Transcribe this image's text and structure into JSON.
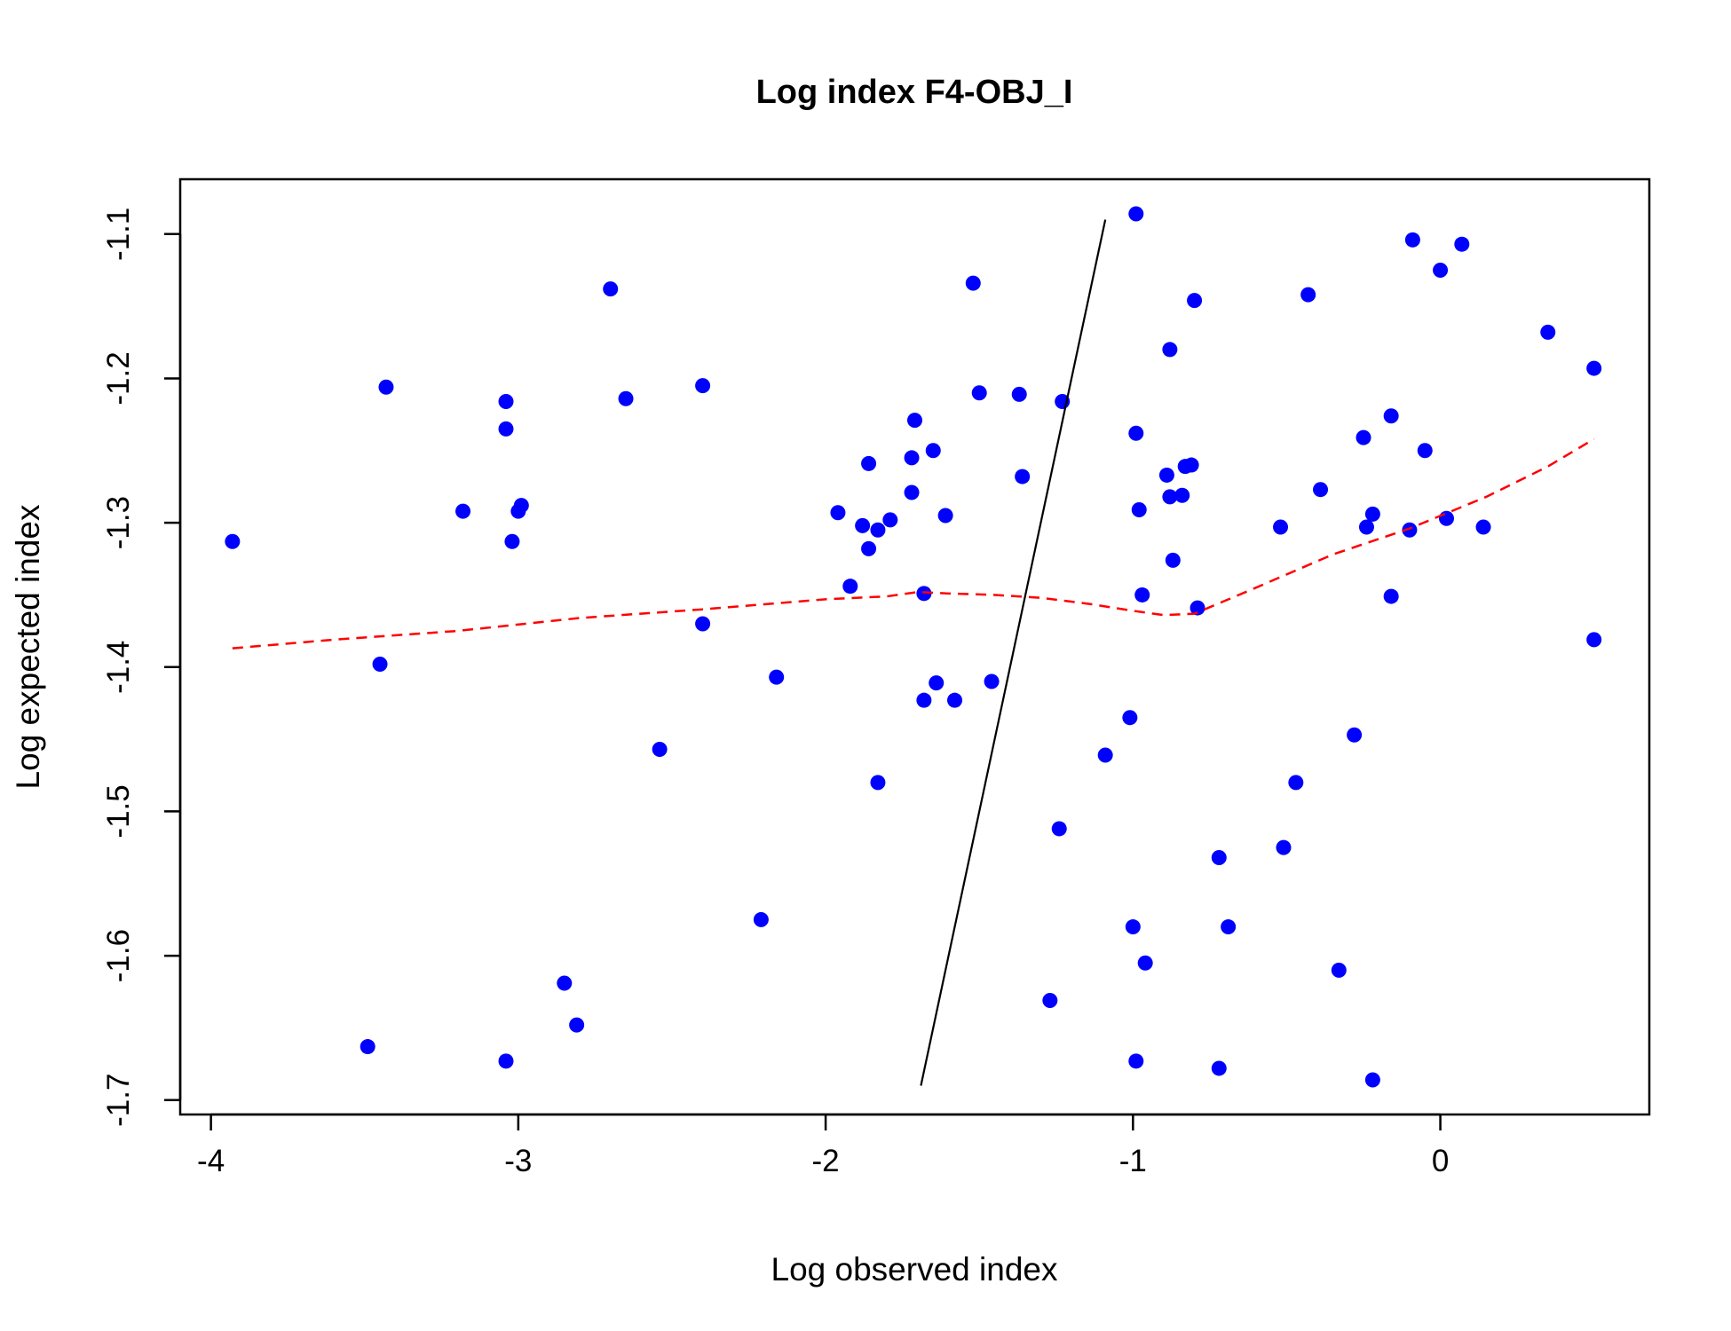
{
  "chart_data": {
    "type": "scatter",
    "title": "Log index F4-OBJ_I",
    "xlabel": "Log observed index",
    "ylabel": "Log expected index",
    "xlim": [
      -4.1,
      0.68
    ],
    "ylim": [
      -1.71,
      -1.062
    ],
    "x_ticks": [
      -4,
      -3,
      -2,
      -1,
      0
    ],
    "y_ticks": [
      -1.7,
      -1.6,
      -1.5,
      -1.4,
      -1.3,
      -1.2,
      -1.1
    ],
    "grid": false,
    "legend": "none",
    "colors": {
      "points": "#0000ff",
      "reference_line": "#000000",
      "smoother": "#ff0000",
      "frame": "#000000"
    },
    "series": [
      {
        "kind": "points",
        "x": [
          -3.93,
          -3.45,
          -3.43,
          -3.49,
          -3.18,
          -3.04,
          -3.04,
          -3.02,
          -3.0,
          -2.99,
          -3.04,
          -2.85,
          -2.81,
          -2.7,
          -2.65,
          -2.54,
          -2.4,
          -2.4,
          -2.21,
          -2.16,
          -1.96,
          -1.92,
          -1.88,
          -1.86,
          -1.86,
          -1.83,
          -1.83,
          -1.79,
          -1.72,
          -1.72,
          -1.71,
          -1.68,
          -1.68,
          -1.65,
          -1.64,
          -1.61,
          -1.58,
          -1.52,
          -1.5,
          -1.46,
          -1.37,
          -1.36,
          -1.23,
          -1.24,
          -1.27,
          -1.09,
          -1.0,
          -1.01,
          -0.99,
          -0.99,
          -0.99,
          -0.98,
          -0.97,
          -0.96,
          -0.89,
          -0.88,
          -0.88,
          -0.87,
          -0.84,
          -0.83,
          -0.81,
          -0.8,
          -0.79,
          -0.72,
          -0.72,
          -0.69,
          -0.52,
          -0.51,
          -0.47,
          -0.43,
          -0.39,
          -0.33,
          -0.28,
          -0.25,
          -0.24,
          -0.22,
          -0.16,
          -0.16,
          -0.1,
          -0.09,
          -0.05,
          0.0,
          0.02,
          0.07,
          0.14,
          0.35,
          0.5,
          0.5,
          -0.22
        ],
        "y": [
          -1.313,
          -1.398,
          -1.206,
          -1.663,
          -1.292,
          -1.216,
          -1.235,
          -1.313,
          -1.292,
          -1.288,
          -1.673,
          -1.619,
          -1.648,
          -1.138,
          -1.214,
          -1.457,
          -1.205,
          -1.37,
          -1.575,
          -1.407,
          -1.293,
          -1.344,
          -1.302,
          -1.259,
          -1.318,
          -1.305,
          -1.48,
          -1.298,
          -1.255,
          -1.279,
          -1.229,
          -1.349,
          -1.423,
          -1.25,
          -1.411,
          -1.295,
          -1.423,
          -1.134,
          -1.21,
          -1.41,
          -1.211,
          -1.268,
          -1.216,
          -1.512,
          -1.631,
          -1.461,
          -1.58,
          -1.435,
          -1.238,
          -1.673,
          -1.086,
          -1.291,
          -1.35,
          -1.605,
          -1.267,
          -1.18,
          -1.282,
          -1.326,
          -1.281,
          -1.261,
          -1.26,
          -1.146,
          -1.359,
          -1.532,
          -1.678,
          -1.58,
          -1.303,
          -1.525,
          -1.48,
          -1.142,
          -1.277,
          -1.61,
          -1.447,
          -1.241,
          -1.303,
          -1.294,
          -1.226,
          -1.351,
          -1.305,
          -1.104,
          -1.25,
          -1.125,
          -1.297,
          -1.107,
          -1.303,
          -1.168,
          -1.193,
          -1.381,
          -1.686
        ]
      },
      {
        "kind": "reference-line",
        "x": [
          -1.69,
          -1.09
        ],
        "y": [
          -1.69,
          -1.09
        ]
      },
      {
        "kind": "smoother",
        "x": [
          -3.93,
          -3.6,
          -3.2,
          -2.8,
          -2.4,
          -2.0,
          -1.8,
          -1.7,
          -1.6,
          -1.45,
          -1.3,
          -1.15,
          -1.0,
          -0.9,
          -0.8,
          -0.6,
          -0.35,
          -0.1,
          0.15,
          0.35,
          0.5
        ],
        "y": [
          -1.387,
          -1.381,
          -1.375,
          -1.366,
          -1.36,
          -1.353,
          -1.351,
          -1.348,
          -1.349,
          -1.35,
          -1.352,
          -1.356,
          -1.361,
          -1.364,
          -1.363,
          -1.345,
          -1.322,
          -1.304,
          -1.282,
          -1.261,
          -1.242
        ]
      }
    ]
  }
}
